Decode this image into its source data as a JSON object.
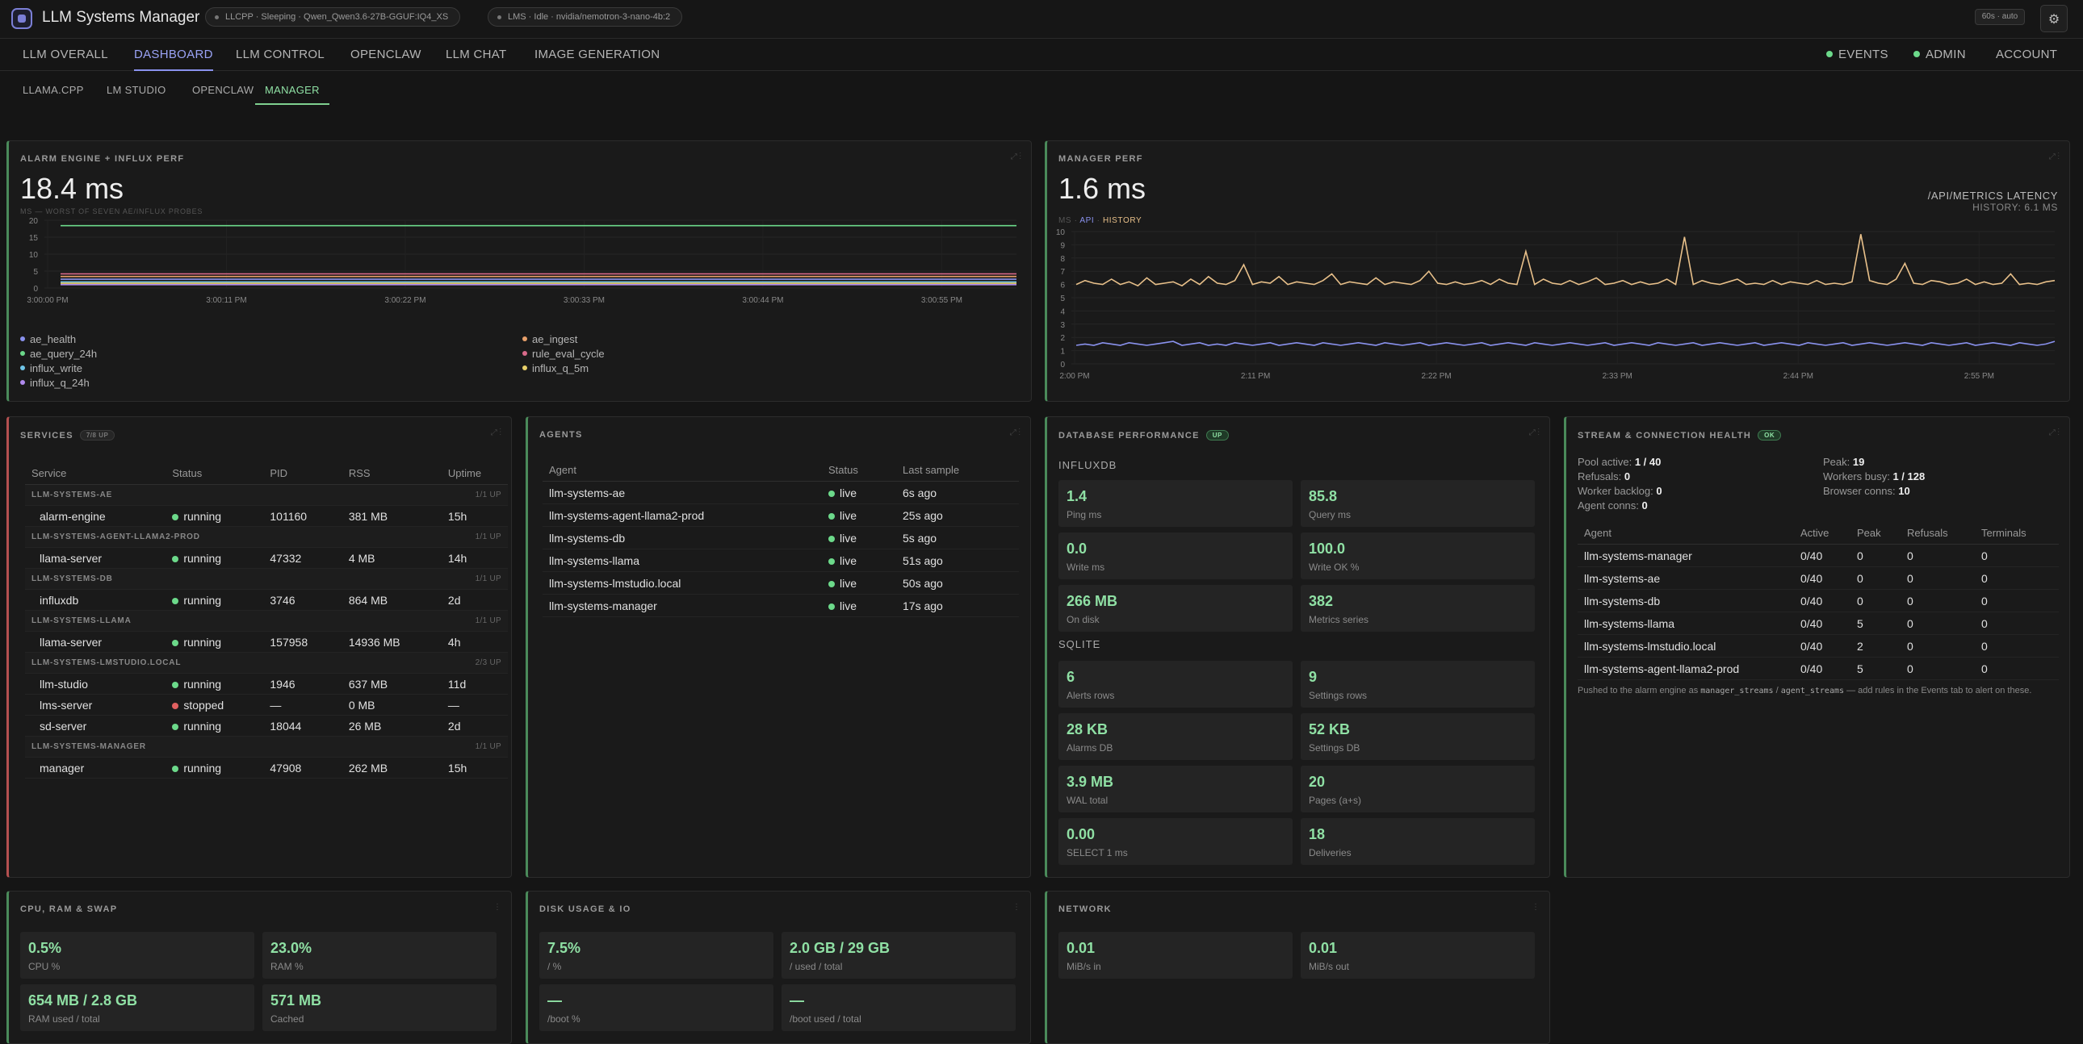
{
  "app": {
    "title": "LLM Systems Manager",
    "pill1": "LLCPP · Sleeping · Qwen_Qwen3.6-27B-GGUF:IQ4_XS",
    "pill2": "LMS · Idle · nvidia/nemotron-3-nano-4b:2",
    "auto": "60s · auto",
    "gear": "⚙"
  },
  "nav": {
    "tabs": [
      "LLM OVERALL",
      "DASHBOARD",
      "LLM CONTROL",
      "OPENCLAW",
      "LLM CHAT",
      "IMAGE GENERATION"
    ],
    "right": [
      "EVENTS",
      "ADMIN",
      "ACCOUNT"
    ],
    "subtabs": [
      "LLAMA.CPP",
      "LM STUDIO",
      "OPENCLAW",
      "MANAGER"
    ]
  },
  "alarm": {
    "title": "ALARM ENGINE + INFLUX PERF",
    "value": "18.4 ms",
    "sub": "MS — WORST OF SEVEN AE/INFLUX PROBES",
    "legend": [
      {
        "name": "ae_health",
        "color": "#8a92ee"
      },
      {
        "name": "ae_ingest",
        "color": "#e8a06a"
      },
      {
        "name": "ae_query_24h",
        "color": "#6cd98a"
      },
      {
        "name": "rule_eval_cycle",
        "color": "#d86a8a"
      },
      {
        "name": "influx_write",
        "color": "#70c6e8"
      },
      {
        "name": "influx_q_5m",
        "color": "#e8d06a"
      },
      {
        "name": "influx_q_24h",
        "color": "#b08aee"
      }
    ]
  },
  "manager_perf": {
    "title": "MANAGER PERF",
    "value": "1.6 ms",
    "right_title": "/API/METRICS LATENCY",
    "right_sub": "HISTORY: 6.1 MS",
    "legend_ms": "MS",
    "legend_api": "API",
    "legend_hist": "HISTORY"
  },
  "chart_data": [
    {
      "type": "line",
      "title": "",
      "ylim": [
        0,
        20
      ],
      "yticks": [
        "0",
        "5",
        "10",
        "15",
        "20"
      ],
      "xticks": [
        "3:00:00 PM",
        "3:00:11 PM",
        "3:00:22 PM",
        "3:00:33 PM",
        "3:00:44 PM",
        "3:00:55 PM"
      ],
      "series": [
        {
          "name": "ae_query_24h",
          "values": [
            18.4,
            18.4,
            18.4,
            18.4,
            18.4,
            18.4
          ]
        },
        {
          "name": "rule_eval_cycle",
          "values": [
            4.2,
            4.2,
            4.2,
            4.2,
            4.2,
            4.2
          ]
        },
        {
          "name": "ae_ingest",
          "values": [
            3.4,
            3.4,
            3.4,
            3.4,
            3.4,
            3.4
          ]
        },
        {
          "name": "ae_health",
          "values": [
            2.6,
            2.6,
            2.6,
            2.6,
            2.6,
            2.6
          ]
        },
        {
          "name": "influx_write",
          "values": [
            1.8,
            1.8,
            1.8,
            1.8,
            1.8,
            1.8
          ]
        },
        {
          "name": "influx_q_5m",
          "values": [
            1.4,
            1.4,
            1.4,
            1.4,
            1.4,
            1.4
          ]
        },
        {
          "name": "influx_q_24h",
          "values": [
            1.0,
            1.0,
            1.0,
            1.0,
            1.0,
            1.0
          ]
        }
      ]
    },
    {
      "type": "line",
      "title": "",
      "ylim": [
        0,
        10
      ],
      "yticks": [
        "0",
        "1",
        "2",
        "3",
        "4",
        "5",
        "6",
        "7",
        "8",
        "9",
        "10"
      ],
      "xticks": [
        "2:00 PM",
        "2:11 PM",
        "2:22 PM",
        "2:33 PM",
        "2:44 PM",
        "2:55 PM"
      ],
      "series": [
        {
          "name": "HISTORY",
          "values": [
            6.0,
            6.3,
            6.1,
            6.0,
            6.4,
            6.0,
            6.2,
            5.9,
            6.5,
            6.0,
            6.1,
            6.2,
            5.9,
            6.4,
            6.0,
            6.6,
            6.1,
            6.0,
            6.3,
            7.5,
            6.0,
            6.2,
            6.1,
            6.6,
            6.0,
            6.2,
            6.1,
            6.0,
            6.3,
            6.8,
            6.0,
            6.2,
            6.1,
            6.0,
            6.5,
            6.0,
            6.2,
            6.1,
            6.0,
            6.3,
            7.0,
            6.1,
            6.0,
            6.2,
            6.0,
            6.1,
            6.3,
            6.0,
            6.4,
            6.1,
            6.0,
            8.5,
            6.0,
            6.4,
            6.1,
            6.0,
            6.3,
            6.0,
            6.2,
            6.5,
            6.0,
            6.1,
            6.3,
            6.0,
            6.2,
            6.0,
            6.1,
            6.4,
            6.0,
            9.6,
            6.0,
            6.3,
            6.1,
            6.0,
            6.2,
            6.4,
            6.0,
            6.1,
            6.0,
            6.3,
            6.0,
            6.2,
            6.1,
            6.0,
            6.3,
            6.0,
            6.1,
            6.0,
            6.2,
            9.8,
            6.3,
            6.1,
            6.0,
            6.4,
            7.6,
            6.1,
            6.0,
            6.3,
            6.2,
            6.0,
            6.1,
            6.4,
            6.0,
            6.2,
            6.0,
            6.1,
            6.8,
            6.0,
            6.1,
            6.0,
            6.2,
            6.3
          ]
        },
        {
          "name": "API",
          "values": [
            1.4,
            1.5,
            1.4,
            1.6,
            1.5,
            1.4,
            1.6,
            1.5,
            1.4,
            1.5,
            1.6,
            1.7,
            1.4,
            1.5,
            1.6,
            1.4,
            1.5,
            1.4,
            1.6,
            1.5,
            1.4,
            1.5,
            1.6,
            1.4,
            1.5,
            1.6,
            1.5,
            1.4,
            1.6,
            1.5,
            1.4,
            1.5,
            1.6,
            1.5,
            1.4,
            1.6,
            1.5,
            1.4,
            1.5,
            1.6,
            1.4,
            1.5,
            1.6,
            1.5,
            1.4,
            1.5,
            1.6,
            1.4,
            1.5,
            1.6,
            1.5,
            1.4,
            1.6,
            1.5,
            1.4,
            1.5,
            1.6,
            1.5,
            1.4,
            1.5,
            1.6,
            1.4,
            1.5,
            1.6,
            1.5,
            1.4,
            1.6,
            1.5,
            1.4,
            1.5,
            1.6,
            1.4,
            1.5,
            1.6,
            1.5,
            1.4,
            1.5,
            1.6,
            1.4,
            1.5,
            1.6,
            1.5,
            1.4,
            1.6,
            1.5,
            1.4,
            1.5,
            1.6,
            1.4,
            1.5,
            1.6,
            1.5,
            1.4,
            1.5,
            1.6,
            1.5,
            1.4,
            1.6,
            1.5,
            1.4,
            1.5,
            1.6,
            1.4,
            1.5,
            1.6,
            1.5,
            1.4,
            1.6,
            1.5,
            1.4,
            1.5,
            1.7
          ]
        }
      ]
    }
  ],
  "services": {
    "title": "SERVICES",
    "badge": "7/8 UP",
    "headers": [
      "Service",
      "Status",
      "PID",
      "RSS",
      "Uptime"
    ],
    "groups": [
      {
        "name": "LLM-SYSTEMS-AE",
        "count": "1/1 UP",
        "rows": [
          [
            "alarm-engine",
            "running",
            "101160",
            "381 MB",
            "15h"
          ]
        ]
      },
      {
        "name": "LLM-SYSTEMS-AGENT-LLAMA2-PROD",
        "count": "1/1 UP",
        "rows": [
          [
            "llama-server",
            "running",
            "47332",
            "4 MB",
            "14h"
          ]
        ]
      },
      {
        "name": "LLM-SYSTEMS-DB",
        "count": "1/1 UP",
        "rows": [
          [
            "influxdb",
            "running",
            "3746",
            "864 MB",
            "2d"
          ]
        ]
      },
      {
        "name": "LLM-SYSTEMS-LLAMA",
        "count": "1/1 UP",
        "rows": [
          [
            "llama-server",
            "running",
            "157958",
            "14936 MB",
            "4h"
          ]
        ]
      },
      {
        "name": "LLM-SYSTEMS-LMSTUDIO.LOCAL",
        "count": "2/3 UP",
        "rows": [
          [
            "llm-studio",
            "running",
            "1946",
            "637 MB",
            "11d"
          ],
          [
            "lms-server",
            "stopped",
            "—",
            "0 MB",
            "—"
          ],
          [
            "sd-server",
            "running",
            "18044",
            "26 MB",
            "2d"
          ]
        ]
      },
      {
        "name": "LLM-SYSTEMS-MANAGER",
        "count": "1/1 UP",
        "rows": [
          [
            "manager",
            "running",
            "47908",
            "262 MB",
            "15h"
          ]
        ]
      }
    ]
  },
  "agents": {
    "title": "AGENTS",
    "headers": [
      "Agent",
      "Status",
      "Last sample"
    ],
    "rows": [
      [
        "llm-systems-ae",
        "live",
        "6s ago"
      ],
      [
        "llm-systems-agent-llama2-prod",
        "live",
        "25s ago"
      ],
      [
        "llm-systems-db",
        "live",
        "5s ago"
      ],
      [
        "llm-systems-llama",
        "live",
        "51s ago"
      ],
      [
        "llm-systems-lmstudio.local",
        "live",
        "50s ago"
      ],
      [
        "llm-systems-manager",
        "live",
        "17s ago"
      ]
    ]
  },
  "dbperf": {
    "title": "DATABASE PERFORMANCE",
    "badge": "UP",
    "influx_title": "INFLUXDB",
    "sqlite_title": "SQLITE",
    "influx": [
      {
        "v": "1.4",
        "l": "Ping ms"
      },
      {
        "v": "85.8",
        "l": "Query ms"
      },
      {
        "v": "0.0",
        "l": "Write ms"
      },
      {
        "v": "100.0",
        "l": "Write OK %"
      },
      {
        "v": "266 MB",
        "l": "On disk"
      },
      {
        "v": "382",
        "l": "Metrics series"
      }
    ],
    "sqlite": [
      {
        "v": "6",
        "l": "Alerts rows"
      },
      {
        "v": "9",
        "l": "Settings rows"
      },
      {
        "v": "28 KB",
        "l": "Alarms DB"
      },
      {
        "v": "52 KB",
        "l": "Settings DB"
      },
      {
        "v": "3.9 MB",
        "l": "WAL total"
      },
      {
        "v": "20",
        "l": "Pages (a+s)"
      },
      {
        "v": "0.00",
        "l": "SELECT 1 ms"
      },
      {
        "v": "18",
        "l": "Deliveries"
      }
    ]
  },
  "stream": {
    "title": "STREAM & CONNECTION HEALTH",
    "badge": "OK",
    "kv": [
      {
        "k": "Pool active:",
        "v": "1 / 40"
      },
      {
        "k": "Peak:",
        "v": "19"
      },
      {
        "k": "Refusals:",
        "v": "0"
      },
      {
        "k": "Workers busy:",
        "v": "1 / 128"
      },
      {
        "k": "Worker backlog:",
        "v": "0"
      },
      {
        "k": "Browser conns:",
        "v": "10"
      },
      {
        "k": "Agent conns:",
        "v": "0"
      }
    ],
    "headers": [
      "Agent",
      "Active",
      "Peak",
      "Refusals",
      "Terminals"
    ],
    "rows": [
      [
        "llm-systems-manager",
        "0/40",
        "0",
        "0",
        "0"
      ],
      [
        "llm-systems-ae",
        "0/40",
        "0",
        "0",
        "0"
      ],
      [
        "llm-systems-db",
        "0/40",
        "0",
        "0",
        "0"
      ],
      [
        "llm-systems-llama",
        "0/40",
        "5",
        "0",
        "0"
      ],
      [
        "llm-systems-lmstudio.local",
        "0/40",
        "2",
        "0",
        "0"
      ],
      [
        "llm-systems-agent-llama2-prod",
        "0/40",
        "5",
        "0",
        "0"
      ]
    ],
    "note_a": "Pushed to the alarm engine as ",
    "note_code1": "manager_streams",
    "note_sep": " / ",
    "note_code2": "agent_streams",
    "note_b": " — add rules in the Events tab to alert on these."
  },
  "cpu": {
    "title": "CPU, RAM & SWAP",
    "tiles": [
      {
        "v": "0.5%",
        "l": "CPU %"
      },
      {
        "v": "23.0%",
        "l": "RAM %"
      },
      {
        "v": "654 MB / 2.8 GB",
        "l": "RAM used / total"
      },
      {
        "v": "571 MB",
        "l": "Cached"
      }
    ]
  },
  "disk": {
    "title": "DISK USAGE & IO",
    "tiles": [
      {
        "v": "7.5%",
        "l": "/ %"
      },
      {
        "v": "2.0 GB / 29 GB",
        "l": "/ used / total"
      },
      {
        "v": "—",
        "l": "/boot %"
      },
      {
        "v": "—",
        "l": "/boot used / total"
      }
    ]
  },
  "network": {
    "title": "NETWORK",
    "tiles": [
      {
        "v": "0.01",
        "l": "MiB/s in"
      },
      {
        "v": "0.01",
        "l": "MiB/s out"
      }
    ]
  }
}
